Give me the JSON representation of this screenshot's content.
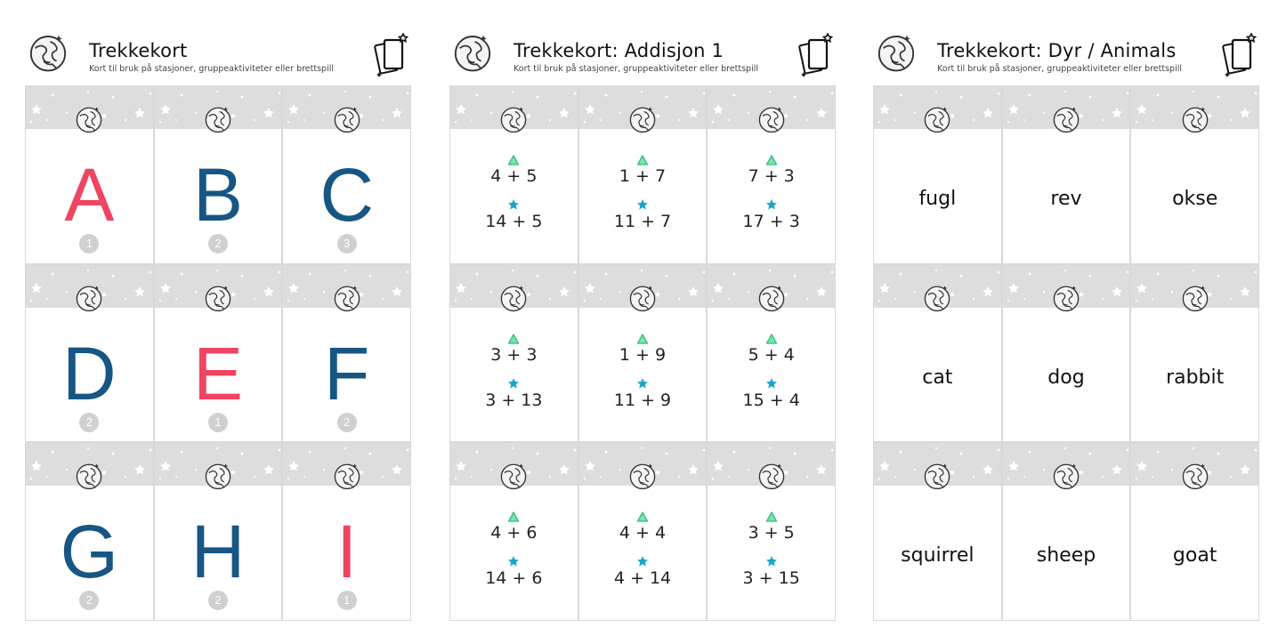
{
  "colors": {
    "red": "#ef4462",
    "blue": "#175684",
    "band": "#dddddd",
    "green": "#2fbf7d",
    "cyan": "#1aa6c9",
    "badge": "#d0d0d0"
  },
  "sheets": [
    {
      "title": "Trekkekort",
      "subtitle": "Kort til bruk på stasjoner, gruppeaktiviteter eller brettspill",
      "icons": {
        "logo": "globe-logo-icon",
        "cards": "card-stack-icon"
      },
      "cards": [
        {
          "letter": "A",
          "level": "1",
          "color": "red"
        },
        {
          "letter": "B",
          "level": "2",
          "color": "blue"
        },
        {
          "letter": "C",
          "level": "3",
          "color": "blue"
        },
        {
          "letter": "D",
          "level": "2",
          "color": "blue"
        },
        {
          "letter": "E",
          "level": "1",
          "color": "red"
        },
        {
          "letter": "F",
          "level": "2",
          "color": "blue"
        },
        {
          "letter": "G",
          "level": "2",
          "color": "blue"
        },
        {
          "letter": "H",
          "level": "2",
          "color": "blue"
        },
        {
          "letter": "I",
          "level": "1",
          "color": "red"
        }
      ]
    },
    {
      "title": "Trekkekort: Addisjon 1",
      "subtitle": "Kort til bruk på stasjoner, gruppeaktiviteter eller brettspill",
      "icons": {
        "logo": "globe-logo-icon",
        "cards": "card-stack-icon",
        "easy": "triangle-icon",
        "hard": "star-icon"
      },
      "cards": [
        {
          "easy": "4 + 5",
          "hard": "14 + 5"
        },
        {
          "easy": "1 + 7",
          "hard": "11 + 7"
        },
        {
          "easy": "7 + 3",
          "hard": "17 + 3"
        },
        {
          "easy": "3 + 3",
          "hard": "3 + 13"
        },
        {
          "easy": "1 + 9",
          "hard": "11 + 9"
        },
        {
          "easy": "5 + 4",
          "hard": "15 + 4"
        },
        {
          "easy": "4 + 6",
          "hard": "14 + 6"
        },
        {
          "easy": "4 + 4",
          "hard": "4 + 14"
        },
        {
          "easy": "3 + 5",
          "hard": "3 + 15"
        }
      ]
    },
    {
      "title": "Trekkekort: Dyr / Animals",
      "subtitle": "Kort til bruk på stasjoner, gruppeaktiviteter eller brettspill",
      "icons": {
        "logo": "globe-logo-icon",
        "cards": "card-stack-icon"
      },
      "cards": [
        {
          "word": "fugl"
        },
        {
          "word": "rev"
        },
        {
          "word": "okse"
        },
        {
          "word": "cat"
        },
        {
          "word": "dog"
        },
        {
          "word": "rabbit"
        },
        {
          "word": "squirrel"
        },
        {
          "word": "sheep"
        },
        {
          "word": "goat"
        }
      ]
    }
  ]
}
